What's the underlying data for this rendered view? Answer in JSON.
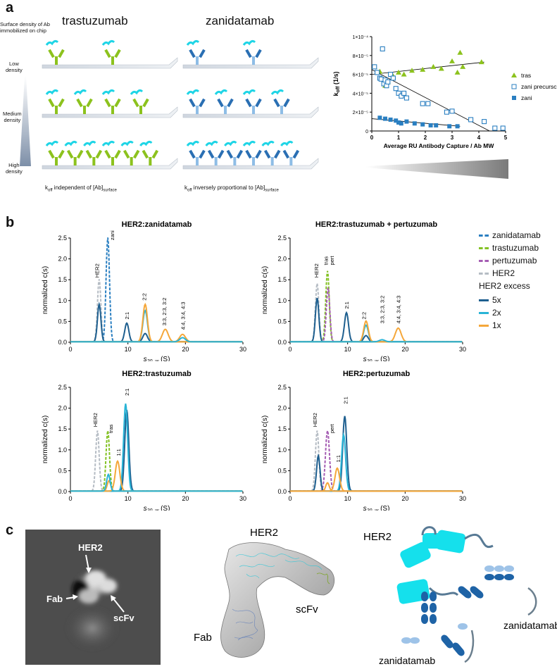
{
  "panel_a": {
    "letter": "a",
    "trastuzumab_title": "trastuzumab",
    "zanidatamab_title": "zanidatamab",
    "surface_label_1": "Surface density of Ab",
    "surface_label_2": "immobilized on chip",
    "low_1": "Low",
    "low_2": "density",
    "medium_1": "Medium",
    "medium_2": "density",
    "high_1": "High",
    "high_2": "density",
    "koff_left_main": "k",
    "koff_left_sub": "off",
    "koff_left_rest": " independent of [Ab]",
    "koff_left_sub2": "surface",
    "koff_right_main": "k",
    "koff_right_sub": "off",
    "koff_right_rest": " inversely proportional to [Ab]",
    "koff_right_sub2": "surface",
    "colors": {
      "green": "#8cc21d",
      "cyan": "#1fd5e6",
      "blue": "#2a6fb3",
      "lightblue": "#8ebde6"
    }
  },
  "panel_b": {
    "letter": "b",
    "legend": {
      "items": [
        {
          "label": "zanidatamab",
          "color": "#2a7fc1",
          "dash": true
        },
        {
          "label": "trastuzumab",
          "color": "#84c225",
          "dash": true
        },
        {
          "label": "pertuzumab",
          "color": "#a55db3",
          "dash": true
        },
        {
          "label": "HER2",
          "color": "#b5bcc4",
          "dash": true
        }
      ],
      "excess_title": "HER2 excess",
      "excess_items": [
        {
          "label": "5x",
          "color": "#1e5f8f"
        },
        {
          "label": "2x",
          "color": "#29b4d6"
        },
        {
          "label": "1x",
          "color": "#f5a73a"
        }
      ]
    }
  },
  "panel_c": {
    "letter": "c",
    "em_labels": {
      "her2": "HER2",
      "fab": "Fab",
      "scfv": "scFv"
    },
    "map_labels": {
      "her2": "HER2",
      "scfv": "scFv",
      "fab": "Fab"
    },
    "schematic_labels": {
      "her2": "HER2",
      "zani1": "zanidatamab",
      "zani2": "zanidatamab"
    }
  },
  "chart_data": [
    {
      "type": "scatter",
      "id": "koff",
      "ylabel_main": "k",
      "ylabel_sub": "off",
      "ylabel_unit": " (1/s)",
      "xlabel": "Average RU Antibody Capture / Ab MW",
      "xlim": [
        0,
        5
      ],
      "ylim": [
        0,
        0.0001
      ],
      "yticks": [
        "0",
        "2×10⁻⁵",
        "4×10⁻⁵",
        "6×10⁻⁵",
        "8×10⁻⁵",
        "1×10⁻⁴"
      ],
      "xticks": [
        "0",
        "1",
        "2",
        "3",
        "4",
        "5"
      ],
      "series": [
        {
          "name": "tras",
          "marker": "triangle",
          "color": "#8cc21d",
          "x": [
            0.1,
            0.3,
            0.5,
            0.6,
            0.8,
            1.0,
            1.2,
            1.5,
            1.9,
            2.3,
            2.6,
            3.0,
            3.2,
            3.3,
            3.4,
            4.1
          ],
          "y": [
            6.8e-05,
            6.3e-05,
            4.8e-05,
            5.2e-05,
            5.8e-05,
            6.2e-05,
            6e-05,
            6.4e-05,
            6.5e-05,
            6.8e-05,
            6.6e-05,
            7.4e-05,
            6.2e-05,
            8.3e-05,
            6.8e-05,
            7.3e-05
          ],
          "fit": [
            [
              0,
              6e-05
            ],
            [
              4.2,
              7.3e-05
            ]
          ]
        },
        {
          "name": "zani precursor",
          "marker": "square-open",
          "color": "#2a7fc1",
          "x": [
            0.1,
            0.2,
            0.3,
            0.35,
            0.4,
            0.45,
            0.5,
            0.55,
            0.6,
            0.7,
            0.8,
            0.9,
            1.0,
            1.1,
            1.2,
            1.3,
            1.9,
            2.1,
            2.8,
            3.0,
            3.7,
            4.2,
            4.6,
            4.9
          ],
          "y": [
            6.8e-05,
            6.2e-05,
            5.6e-05,
            5.5e-05,
            8.7e-05,
            5e-05,
            5.4e-05,
            4.8e-05,
            5.2e-05,
            6e-05,
            5.6e-05,
            4.5e-05,
            4e-05,
            3.7e-05,
            4e-05,
            3.5e-05,
            2.9e-05,
            2.9e-05,
            2e-05,
            2.1e-05,
            1.2e-05,
            1e-05,
            3e-06,
            3e-06
          ],
          "fit": [
            [
              0,
              6.5e-05
            ],
            [
              4.4,
              0
            ]
          ]
        },
        {
          "name": "zani",
          "marker": "square",
          "color": "#2a7fc1",
          "x": [
            0.3,
            0.5,
            0.7,
            0.9,
            1.0,
            1.1,
            1.3,
            1.6,
            1.9,
            2.2,
            2.4,
            2.9,
            3.2
          ],
          "y": [
            1.4e-05,
            1.3e-05,
            1.2e-05,
            1.1e-05,
            9e-06,
            8e-06,
            1e-05,
            8e-06,
            7e-06,
            6e-06,
            6e-06,
            5e-06,
            5e-06
          ],
          "fit": [
            [
              0,
              1.3e-05
            ],
            [
              3.3,
              5e-06
            ]
          ]
        }
      ]
    },
    {
      "type": "line",
      "id": "sv1",
      "title": "HER2:zanidatamab",
      "ylabel": "normalized c(s)",
      "xlabel_main": "s",
      "xlabel_sub": "20, w",
      "xlabel_unit": " (S)",
      "xlim": [
        0,
        30
      ],
      "ylim": [
        0,
        2.5
      ],
      "yticks": [
        "0.0",
        "0.5",
        "1.0",
        "1.5",
        "2.0",
        "2.5"
      ],
      "xticks": [
        "0",
        "10",
        "20",
        "30"
      ],
      "peaks": [
        {
          "series": "HER2",
          "color": "#b5bcc4",
          "dash": true,
          "center": 5.0,
          "height": 1.5,
          "width": 0.3
        },
        {
          "series": "zanidatamab",
          "color": "#2a7fc1",
          "dash": true,
          "center": 6.5,
          "height": 2.5,
          "width": 0.3
        },
        {
          "series": "5x",
          "color": "#1e5f8f",
          "center": 5.0,
          "height": 0.9,
          "width": 0.3
        },
        {
          "series": "5x",
          "color": "#1e5f8f",
          "center": 9.8,
          "height": 0.45,
          "width": 0.35
        },
        {
          "series": "5x",
          "color": "#1e5f8f",
          "center": 13.0,
          "height": 0.2,
          "width": 0.4
        },
        {
          "series": "2x",
          "color": "#29b4d6",
          "center": 13.0,
          "height": 0.75,
          "width": 0.4
        },
        {
          "series": "1x",
          "color": "#f5a73a",
          "center": 13.0,
          "height": 0.9,
          "width": 0.4
        },
        {
          "series": "1x",
          "color": "#f5a73a",
          "center": 16.5,
          "height": 0.3,
          "width": 0.5
        },
        {
          "series": "1x",
          "color": "#f5a73a",
          "center": 19.5,
          "height": 0.18,
          "width": 0.5
        },
        {
          "series": "2x",
          "color": "#29b4d6",
          "center": 19.5,
          "height": 0.1,
          "width": 0.5
        }
      ],
      "annotations": [
        {
          "text": "HER2",
          "x": 4.6,
          "y": 1.55
        },
        {
          "text": "zani",
          "x": 7.2,
          "y": 2.45
        },
        {
          "text": "2:1",
          "x": 9.8,
          "y": 0.55
        },
        {
          "text": "2:2",
          "x": 12.8,
          "y": 1.0
        },
        {
          "text": "3:3, 2:3, 3:2",
          "x": 16.3,
          "y": 0.4
        },
        {
          "text": "4:4, 3:4, 4:3",
          "x": 19.5,
          "y": 0.3
        }
      ]
    },
    {
      "type": "line",
      "id": "sv2",
      "title": "HER2:trastuzumab + pertuzumab",
      "ylabel": "normalized c(s)",
      "xlabel_main": "s",
      "xlabel_sub": "20, w",
      "xlabel_unit": " (S)",
      "xlim": [
        0,
        30
      ],
      "ylim": [
        0,
        2.5
      ],
      "yticks": [
        "0.0",
        "0.5",
        "1.0",
        "1.5",
        "2.0",
        "2.5"
      ],
      "xticks": [
        "0",
        "10",
        "20",
        "30"
      ],
      "peaks": [
        {
          "series": "HER2",
          "color": "#b5bcc4",
          "dash": true,
          "center": 4.7,
          "height": 1.4,
          "width": 0.3
        },
        {
          "series": "trastuzumab",
          "color": "#84c225",
          "dash": true,
          "center": 6.5,
          "height": 1.7,
          "width": 0.3
        },
        {
          "series": "pertuzumab",
          "color": "#a55db3",
          "dash": true,
          "center": 6.6,
          "height": 1.3,
          "width": 0.3
        },
        {
          "series": "5x",
          "color": "#1e5f8f",
          "center": 4.7,
          "height": 1.05,
          "width": 0.3
        },
        {
          "series": "5x",
          "color": "#1e5f8f",
          "center": 9.8,
          "height": 0.7,
          "width": 0.35
        },
        {
          "series": "5x",
          "color": "#1e5f8f",
          "center": 13.2,
          "height": 0.15,
          "width": 0.4
        },
        {
          "series": "2x",
          "color": "#29b4d6",
          "center": 13.2,
          "height": 0.4,
          "width": 0.4
        },
        {
          "series": "1x",
          "color": "#f5a73a",
          "center": 13.2,
          "height": 0.5,
          "width": 0.4
        },
        {
          "series": "1x",
          "color": "#f5a73a",
          "center": 18.8,
          "height": 0.33,
          "width": 0.5
        },
        {
          "series": "2x",
          "color": "#29b4d6",
          "center": 16.0,
          "height": 0.05,
          "width": 0.5
        }
      ],
      "annotations": [
        {
          "text": "HER2",
          "x": 4.5,
          "y": 1.55
        },
        {
          "text": "tras",
          "x": 6.2,
          "y": 1.85
        },
        {
          "text": "pert",
          "x": 7.2,
          "y": 1.85
        },
        {
          "text": "2:1",
          "x": 9.8,
          "y": 0.8
        },
        {
          "text": "2:2",
          "x": 12.8,
          "y": 0.55
        },
        {
          "text": "3:3, 2:3, 3:2",
          "x": 16.0,
          "y": 0.45
        },
        {
          "text": "4:4, 3:4, 4:3",
          "x": 18.8,
          "y": 0.45
        }
      ]
    },
    {
      "type": "line",
      "id": "sv3",
      "title": "HER2:trastuzumab",
      "ylabel": "normalized c(s)",
      "xlabel_main": "s",
      "xlabel_sub": "20, w",
      "xlabel_unit": " (S)",
      "xlim": [
        0,
        30
      ],
      "ylim": [
        0,
        2.5
      ],
      "yticks": [
        "0.0",
        "0.5",
        "1.0",
        "1.5",
        "2.0",
        "2.5"
      ],
      "xticks": [
        "0",
        "10",
        "20",
        "30"
      ],
      "peaks": [
        {
          "series": "HER2",
          "color": "#b5bcc4",
          "dash": true,
          "center": 4.7,
          "height": 1.45,
          "width": 0.3
        },
        {
          "series": "trastuzumab",
          "color": "#84c225",
          "dash": true,
          "center": 6.5,
          "height": 1.45,
          "width": 0.3
        },
        {
          "series": "5x",
          "color": "#1e5f8f",
          "center": 9.8,
          "height": 1.95,
          "width": 0.35
        },
        {
          "series": "2x",
          "color": "#29b4d6",
          "center": 9.6,
          "height": 2.1,
          "width": 0.35
        },
        {
          "series": "1x",
          "color": "#f5a73a",
          "center": 8.2,
          "height": 0.72,
          "width": 0.4
        },
        {
          "series": "1x",
          "color": "#f5a73a",
          "center": 6.7,
          "height": 0.25,
          "width": 0.3
        },
        {
          "series": "2x",
          "color": "#29b4d6",
          "center": 6.6,
          "height": 0.4,
          "width": 0.3
        }
      ],
      "annotations": [
        {
          "text": "HER2",
          "x": 4.3,
          "y": 1.55
        },
        {
          "text": "tras",
          "x": 7.0,
          "y": 1.4
        },
        {
          "text": "1:1",
          "x": 8.3,
          "y": 0.85
        },
        {
          "text": "2:1",
          "x": 9.8,
          "y": 2.3
        }
      ]
    },
    {
      "type": "line",
      "id": "sv4",
      "title": "HER2:pertuzumab",
      "ylabel": "normalized c(s)",
      "xlabel_main": "s",
      "xlabel_sub": "20, w",
      "xlabel_unit": " (S)",
      "xlim": [
        0,
        30
      ],
      "ylim": [
        0,
        2.5
      ],
      "yticks": [
        "0.0",
        "0.5",
        "1.0",
        "1.5",
        "2.0",
        "2.5"
      ],
      "xticks": [
        "0",
        "10",
        "20",
        "30"
      ],
      "peaks": [
        {
          "series": "HER2",
          "color": "#b5bcc4",
          "dash": true,
          "center": 4.7,
          "height": 1.45,
          "width": 0.3
        },
        {
          "series": "pertuzumab",
          "color": "#a55db3",
          "dash": true,
          "center": 6.5,
          "height": 1.45,
          "width": 0.35
        },
        {
          "series": "5x",
          "color": "#1e5f8f",
          "center": 4.9,
          "height": 0.85,
          "width": 0.3
        },
        {
          "series": "5x",
          "color": "#1e5f8f",
          "center": 9.5,
          "height": 1.8,
          "width": 0.35
        },
        {
          "series": "2x",
          "color": "#29b4d6",
          "center": 9.3,
          "height": 1.35,
          "width": 0.35
        },
        {
          "series": "1x",
          "color": "#f5a73a",
          "center": 8.2,
          "height": 0.55,
          "width": 0.4
        },
        {
          "series": "1x",
          "color": "#f5a73a",
          "center": 6.5,
          "height": 0.2,
          "width": 0.3
        }
      ],
      "annotations": [
        {
          "text": "HER2",
          "x": 4.3,
          "y": 1.55
        },
        {
          "text": "pert",
          "x": 7.2,
          "y": 1.4
        },
        {
          "text": "1:1",
          "x": 8.3,
          "y": 0.7
        },
        {
          "text": "2:1",
          "x": 9.6,
          "y": 2.1
        }
      ]
    }
  ]
}
